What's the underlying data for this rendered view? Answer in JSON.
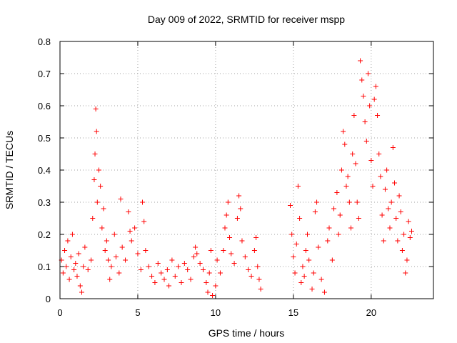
{
  "chart_data": {
    "type": "scatter",
    "title": "Day 009 of 2022, SRMTID for receiver mspp",
    "xlabel": "GPS time / hours",
    "ylabel": "SRMTID / TECUs",
    "xlim": [
      0,
      24
    ],
    "ylim": [
      0,
      0.8
    ],
    "xticks": [
      0,
      5,
      10,
      15,
      20
    ],
    "yticks": [
      0,
      0.1,
      0.2,
      0.3,
      0.4,
      0.5,
      0.6,
      0.7,
      0.8
    ],
    "xtick_labels": [
      "0",
      "5",
      "10",
      "15",
      "20"
    ],
    "ytick_labels": [
      "0",
      "0.1",
      "0.2",
      "0.3",
      "0.4",
      "0.5",
      "0.6",
      "0.7",
      "0.8"
    ],
    "grid": true,
    "marker": "+",
    "color": "#ff0000",
    "series": [
      {
        "name": "SRMTID",
        "points": [
          [
            0.1,
            0.12
          ],
          [
            0.2,
            0.08
          ],
          [
            0.3,
            0.15
          ],
          [
            0.4,
            0.1
          ],
          [
            0.5,
            0.18
          ],
          [
            0.6,
            0.06
          ],
          [
            0.7,
            0.13
          ],
          [
            0.8,
            0.2
          ],
          [
            0.9,
            0.09
          ],
          [
            1.0,
            0.11
          ],
          [
            1.1,
            0.07
          ],
          [
            1.2,
            0.14
          ],
          [
            1.3,
            0.04
          ],
          [
            1.4,
            0.02
          ],
          [
            1.5,
            0.1
          ],
          [
            1.6,
            0.16
          ],
          [
            1.8,
            0.09
          ],
          [
            2.0,
            0.12
          ],
          [
            2.1,
            0.25
          ],
          [
            2.2,
            0.37
          ],
          [
            2.25,
            0.45
          ],
          [
            2.3,
            0.59
          ],
          [
            2.35,
            0.52
          ],
          [
            2.4,
            0.3
          ],
          [
            2.5,
            0.4
          ],
          [
            2.6,
            0.35
          ],
          [
            2.7,
            0.22
          ],
          [
            2.8,
            0.28
          ],
          [
            2.9,
            0.15
          ],
          [
            3.0,
            0.18
          ],
          [
            3.1,
            0.12
          ],
          [
            3.2,
            0.06
          ],
          [
            3.3,
            0.1
          ],
          [
            3.5,
            0.2
          ],
          [
            3.6,
            0.13
          ],
          [
            3.8,
            0.08
          ],
          [
            3.9,
            0.31
          ],
          [
            4.0,
            0.16
          ],
          [
            4.2,
            0.12
          ],
          [
            4.4,
            0.27
          ],
          [
            4.5,
            0.21
          ],
          [
            4.6,
            0.18
          ],
          [
            4.8,
            0.22
          ],
          [
            5.0,
            0.14
          ],
          [
            5.2,
            0.09
          ],
          [
            5.3,
            0.3
          ],
          [
            5.4,
            0.24
          ],
          [
            5.5,
            0.15
          ],
          [
            5.7,
            0.1
          ],
          [
            5.9,
            0.07
          ],
          [
            6.1,
            0.05
          ],
          [
            6.3,
            0.11
          ],
          [
            6.5,
            0.08
          ],
          [
            6.7,
            0.06
          ],
          [
            6.9,
            0.09
          ],
          [
            7.0,
            0.04
          ],
          [
            7.2,
            0.12
          ],
          [
            7.4,
            0.07
          ],
          [
            7.6,
            0.1
          ],
          [
            7.8,
            0.05
          ],
          [
            8.0,
            0.11
          ],
          [
            8.2,
            0.09
          ],
          [
            8.4,
            0.06
          ],
          [
            8.6,
            0.13
          ],
          [
            8.7,
            0.16
          ],
          [
            8.8,
            0.14
          ],
          [
            9.0,
            0.11
          ],
          [
            9.2,
            0.09
          ],
          [
            9.4,
            0.05
          ],
          [
            9.5,
            0.02
          ],
          [
            9.6,
            0.08
          ],
          [
            9.7,
            0.15
          ],
          [
            9.8,
            0.01
          ],
          [
            10.0,
            0.04
          ],
          [
            10.1,
            0.12
          ],
          [
            10.3,
            0.08
          ],
          [
            10.5,
            0.15
          ],
          [
            10.6,
            0.22
          ],
          [
            10.7,
            0.26
          ],
          [
            10.8,
            0.3
          ],
          [
            10.9,
            0.19
          ],
          [
            11.0,
            0.14
          ],
          [
            11.2,
            0.11
          ],
          [
            11.4,
            0.25
          ],
          [
            11.5,
            0.32
          ],
          [
            11.6,
            0.28
          ],
          [
            11.7,
            0.18
          ],
          [
            11.9,
            0.13
          ],
          [
            12.1,
            0.09
          ],
          [
            12.3,
            0.07
          ],
          [
            12.5,
            0.15
          ],
          [
            12.6,
            0.19
          ],
          [
            12.7,
            0.1
          ],
          [
            12.8,
            0.06
          ],
          [
            12.9,
            0.03
          ],
          [
            14.8,
            0.29
          ],
          [
            14.9,
            0.2
          ],
          [
            15.0,
            0.13
          ],
          [
            15.1,
            0.08
          ],
          [
            15.2,
            0.17
          ],
          [
            15.3,
            0.35
          ],
          [
            15.4,
            0.25
          ],
          [
            15.5,
            0.05
          ],
          [
            15.6,
            0.1
          ],
          [
            15.7,
            0.07
          ],
          [
            15.8,
            0.15
          ],
          [
            15.9,
            0.2
          ],
          [
            16.0,
            0.12
          ],
          [
            16.2,
            0.03
          ],
          [
            16.3,
            0.08
          ],
          [
            16.4,
            0.27
          ],
          [
            16.5,
            0.3
          ],
          [
            16.6,
            0.16
          ],
          [
            16.8,
            0.06
          ],
          [
            17.0,
            0.02
          ],
          [
            17.2,
            0.18
          ],
          [
            17.3,
            0.22
          ],
          [
            17.5,
            0.12
          ],
          [
            17.6,
            0.28
          ],
          [
            17.8,
            0.33
          ],
          [
            17.9,
            0.2
          ],
          [
            18.0,
            0.26
          ],
          [
            18.1,
            0.4
          ],
          [
            18.2,
            0.52
          ],
          [
            18.3,
            0.48
          ],
          [
            18.4,
            0.35
          ],
          [
            18.5,
            0.38
          ],
          [
            18.6,
            0.3
          ],
          [
            18.7,
            0.22
          ],
          [
            18.8,
            0.45
          ],
          [
            18.9,
            0.57
          ],
          [
            19.0,
            0.42
          ],
          [
            19.1,
            0.3
          ],
          [
            19.2,
            0.25
          ],
          [
            19.3,
            0.74
          ],
          [
            19.4,
            0.68
          ],
          [
            19.5,
            0.63
          ],
          [
            19.6,
            0.55
          ],
          [
            19.7,
            0.49
          ],
          [
            19.8,
            0.7
          ],
          [
            19.9,
            0.6
          ],
          [
            20.0,
            0.43
          ],
          [
            20.1,
            0.35
          ],
          [
            20.2,
            0.62
          ],
          [
            20.3,
            0.66
          ],
          [
            20.4,
            0.57
          ],
          [
            20.5,
            0.45
          ],
          [
            20.6,
            0.38
          ],
          [
            20.7,
            0.26
          ],
          [
            20.8,
            0.18
          ],
          [
            20.9,
            0.34
          ],
          [
            21.0,
            0.4
          ],
          [
            21.1,
            0.28
          ],
          [
            21.2,
            0.22
          ],
          [
            21.3,
            0.3
          ],
          [
            21.4,
            0.47
          ],
          [
            21.5,
            0.36
          ],
          [
            21.6,
            0.25
          ],
          [
            21.7,
            0.18
          ],
          [
            21.8,
            0.32
          ],
          [
            21.9,
            0.27
          ],
          [
            22.0,
            0.15
          ],
          [
            22.1,
            0.2
          ],
          [
            22.2,
            0.08
          ],
          [
            22.3,
            0.12
          ],
          [
            22.4,
            0.24
          ],
          [
            22.5,
            0.19
          ],
          [
            22.6,
            0.21
          ]
        ]
      }
    ]
  }
}
